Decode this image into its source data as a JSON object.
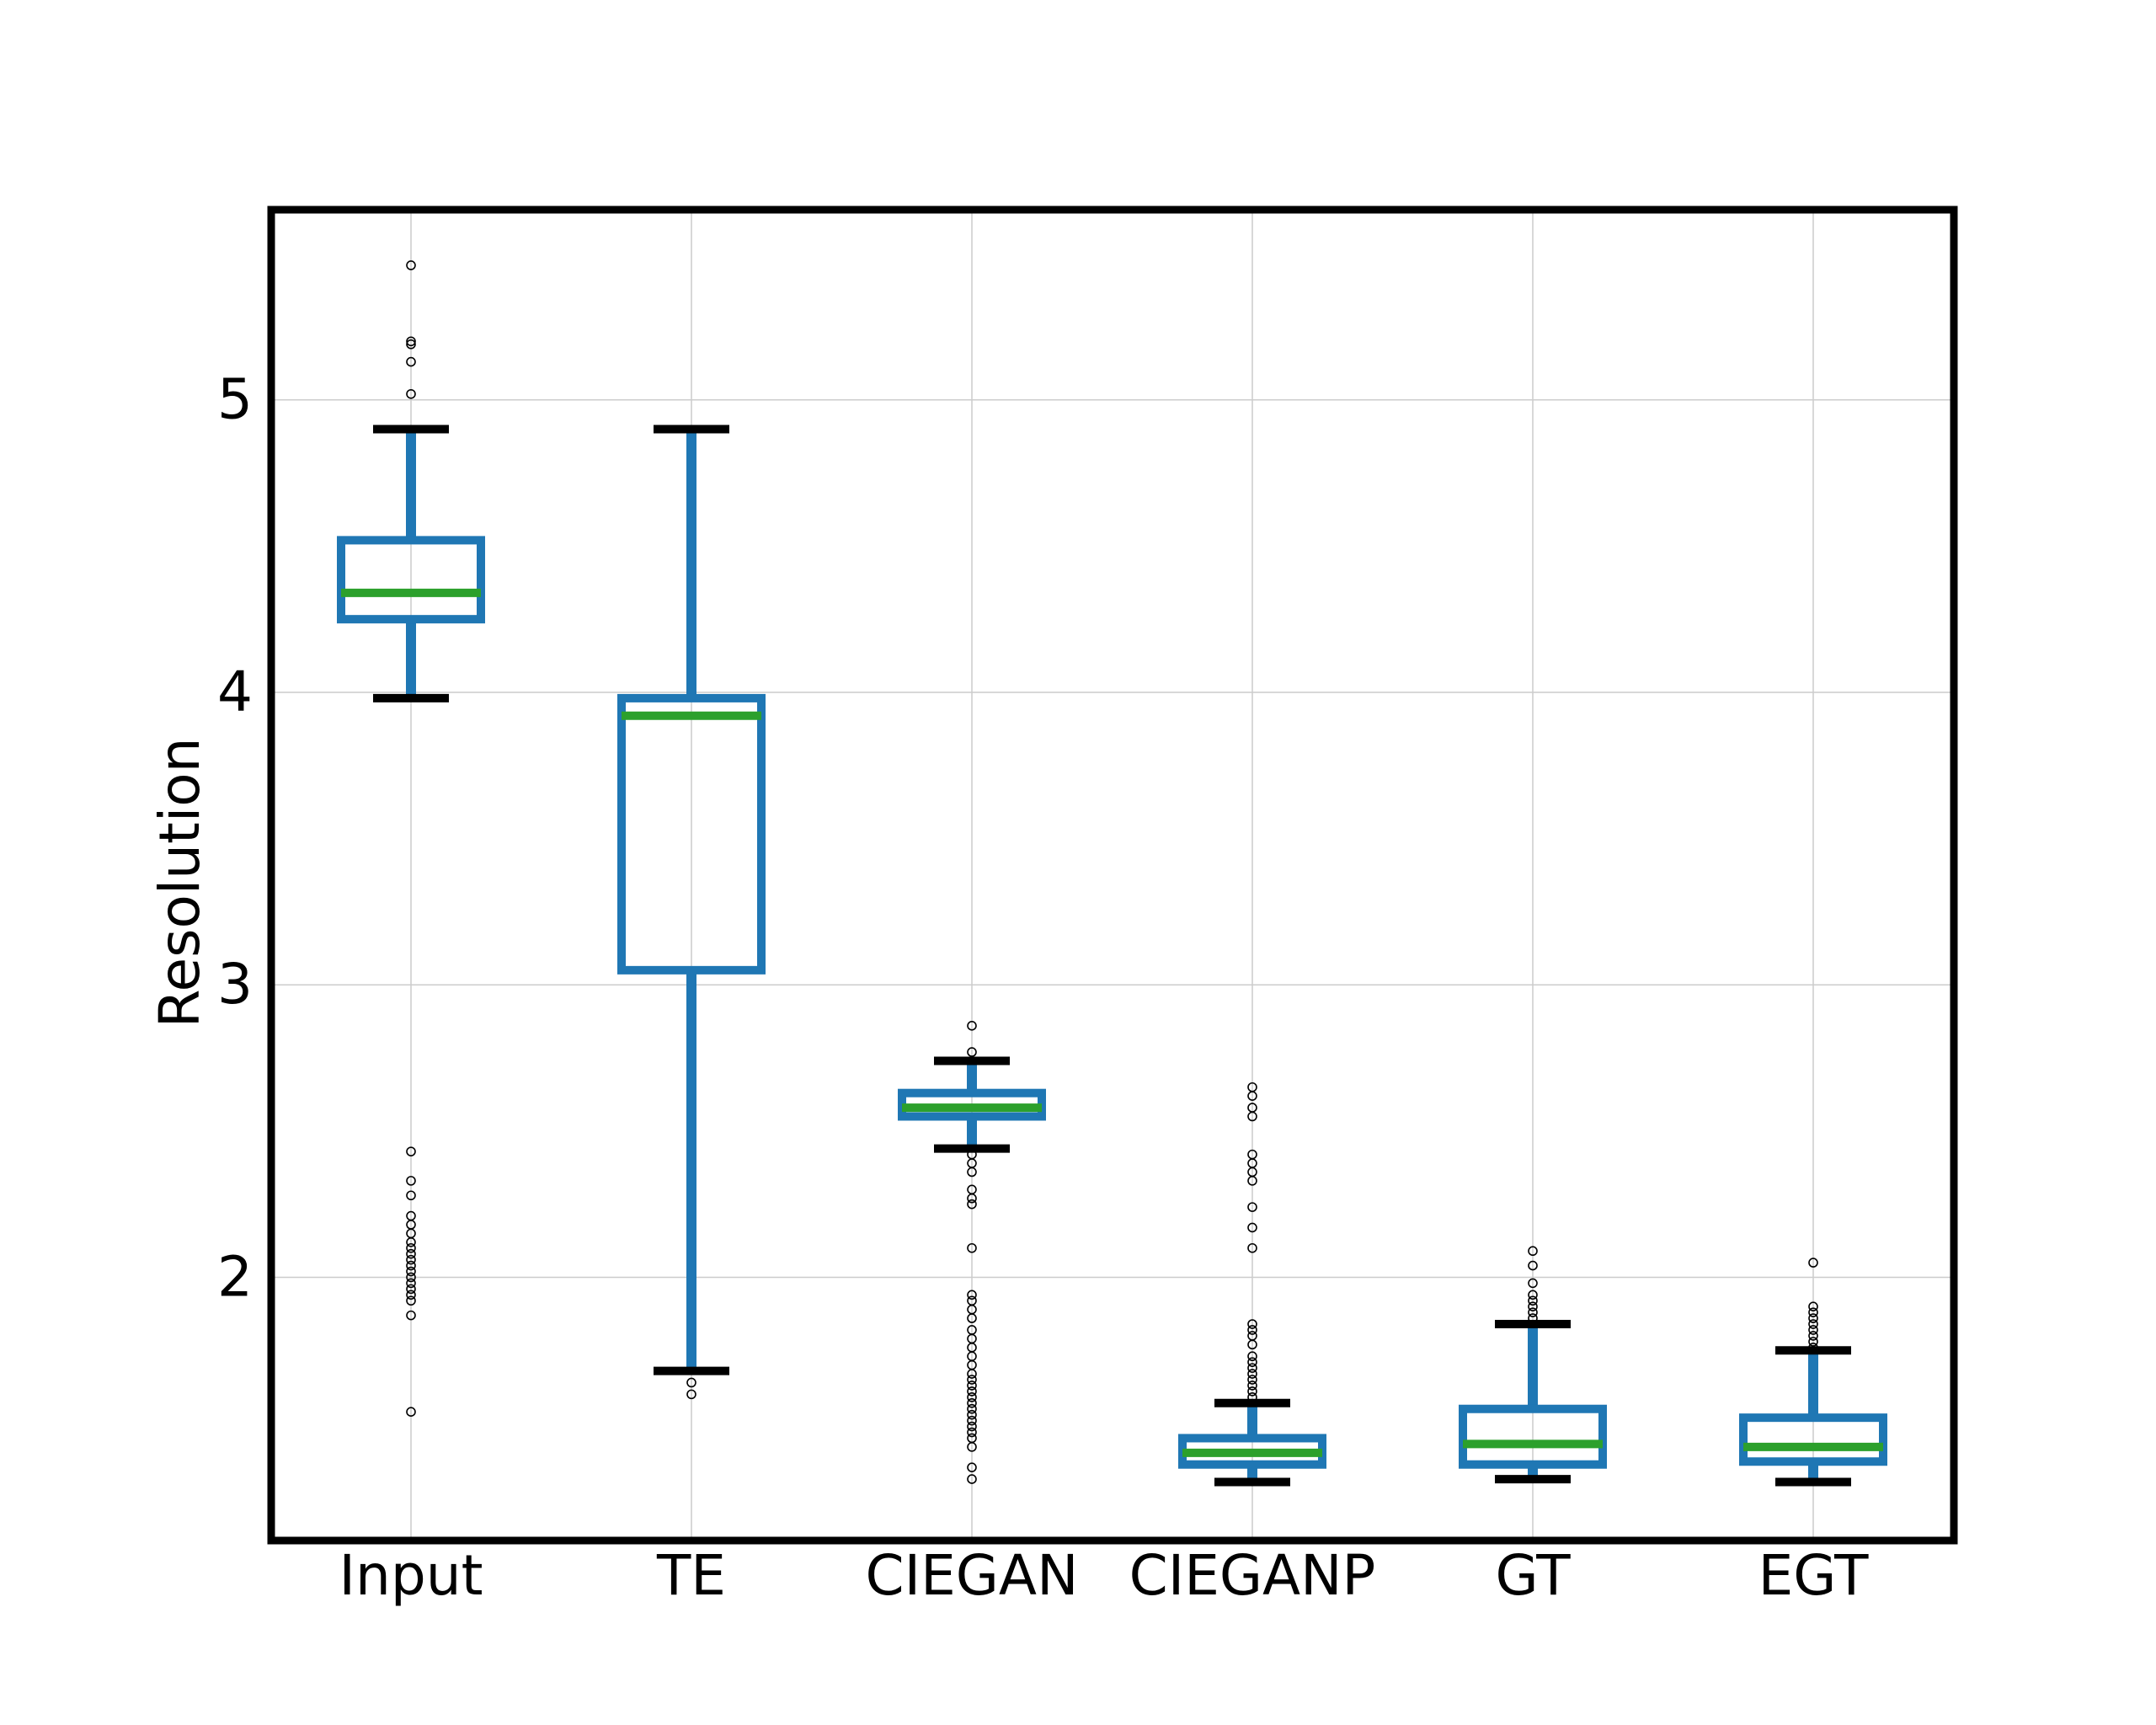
{
  "chart_data": {
    "type": "box",
    "title": "",
    "xlabel": "",
    "ylabel": "Resolution",
    "ylim": [
      1.1,
      5.65
    ],
    "yticks": [
      2,
      3,
      4,
      5
    ],
    "ytick_labels": [
      "2",
      "3",
      "4",
      "5"
    ],
    "grid": true,
    "colors": {
      "box": "#1f77b4",
      "median": "#2ca02c",
      "whisker_cap": "#000000",
      "grid": "#cccccc",
      "frame": "#000000"
    },
    "categories": [
      "Input",
      "TE",
      "CIEGAN",
      "CIEGANP",
      "GT",
      "EGT"
    ],
    "series": [
      {
        "name": "Input",
        "whisker_low": 3.98,
        "q1": 4.25,
        "median": 4.34,
        "q3": 4.52,
        "whisker_high": 4.9,
        "outliers": [
          5.46,
          5.2,
          5.19,
          5.13,
          5.02,
          2.43,
          2.33,
          2.28,
          2.21,
          2.18,
          2.15,
          2.12,
          2.1,
          2.08,
          2.06,
          2.04,
          2.02,
          2.0,
          1.98,
          1.96,
          1.94,
          1.92,
          1.87,
          1.54
        ]
      },
      {
        "name": "TE",
        "whisker_low": 1.68,
        "q1": 3.05,
        "median": 3.92,
        "q3": 3.98,
        "whisker_high": 4.9,
        "outliers": [
          1.64,
          1.6
        ]
      },
      {
        "name": "CIEGAN",
        "whisker_low": 2.44,
        "q1": 2.55,
        "median": 2.58,
        "q3": 2.63,
        "whisker_high": 2.74,
        "outliers": [
          2.86,
          2.77,
          2.42,
          2.39,
          2.36,
          2.3,
          2.27,
          2.25,
          2.1,
          1.94,
          1.92,
          1.89,
          1.86,
          1.82,
          1.79,
          1.76,
          1.73,
          1.7,
          1.67,
          1.65,
          1.63,
          1.61,
          1.59,
          1.57,
          1.55,
          1.53,
          1.51,
          1.49,
          1.47,
          1.45,
          1.42,
          1.35,
          1.31
        ]
      },
      {
        "name": "CIEGANP",
        "whisker_low": 1.3,
        "q1": 1.36,
        "median": 1.4,
        "q3": 1.45,
        "whisker_high": 1.57,
        "outliers": [
          2.65,
          2.62,
          2.58,
          2.55,
          2.42,
          2.39,
          2.36,
          2.33,
          2.24,
          2.17,
          2.1,
          1.84,
          1.82,
          1.8,
          1.77,
          1.73,
          1.71,
          1.69,
          1.67,
          1.65,
          1.63,
          1.61,
          1.59
        ]
      },
      {
        "name": "GT",
        "whisker_low": 1.31,
        "q1": 1.36,
        "median": 1.43,
        "q3": 1.55,
        "whisker_high": 1.84,
        "outliers": [
          2.09,
          2.04,
          1.98,
          1.94,
          1.92,
          1.9,
          1.88,
          1.86
        ]
      },
      {
        "name": "EGT",
        "whisker_low": 1.3,
        "q1": 1.37,
        "median": 1.42,
        "q3": 1.52,
        "whisker_high": 1.75,
        "outliers": [
          2.05,
          1.9,
          1.88,
          1.86,
          1.84,
          1.82,
          1.8,
          1.78,
          1.76
        ]
      }
    ]
  }
}
